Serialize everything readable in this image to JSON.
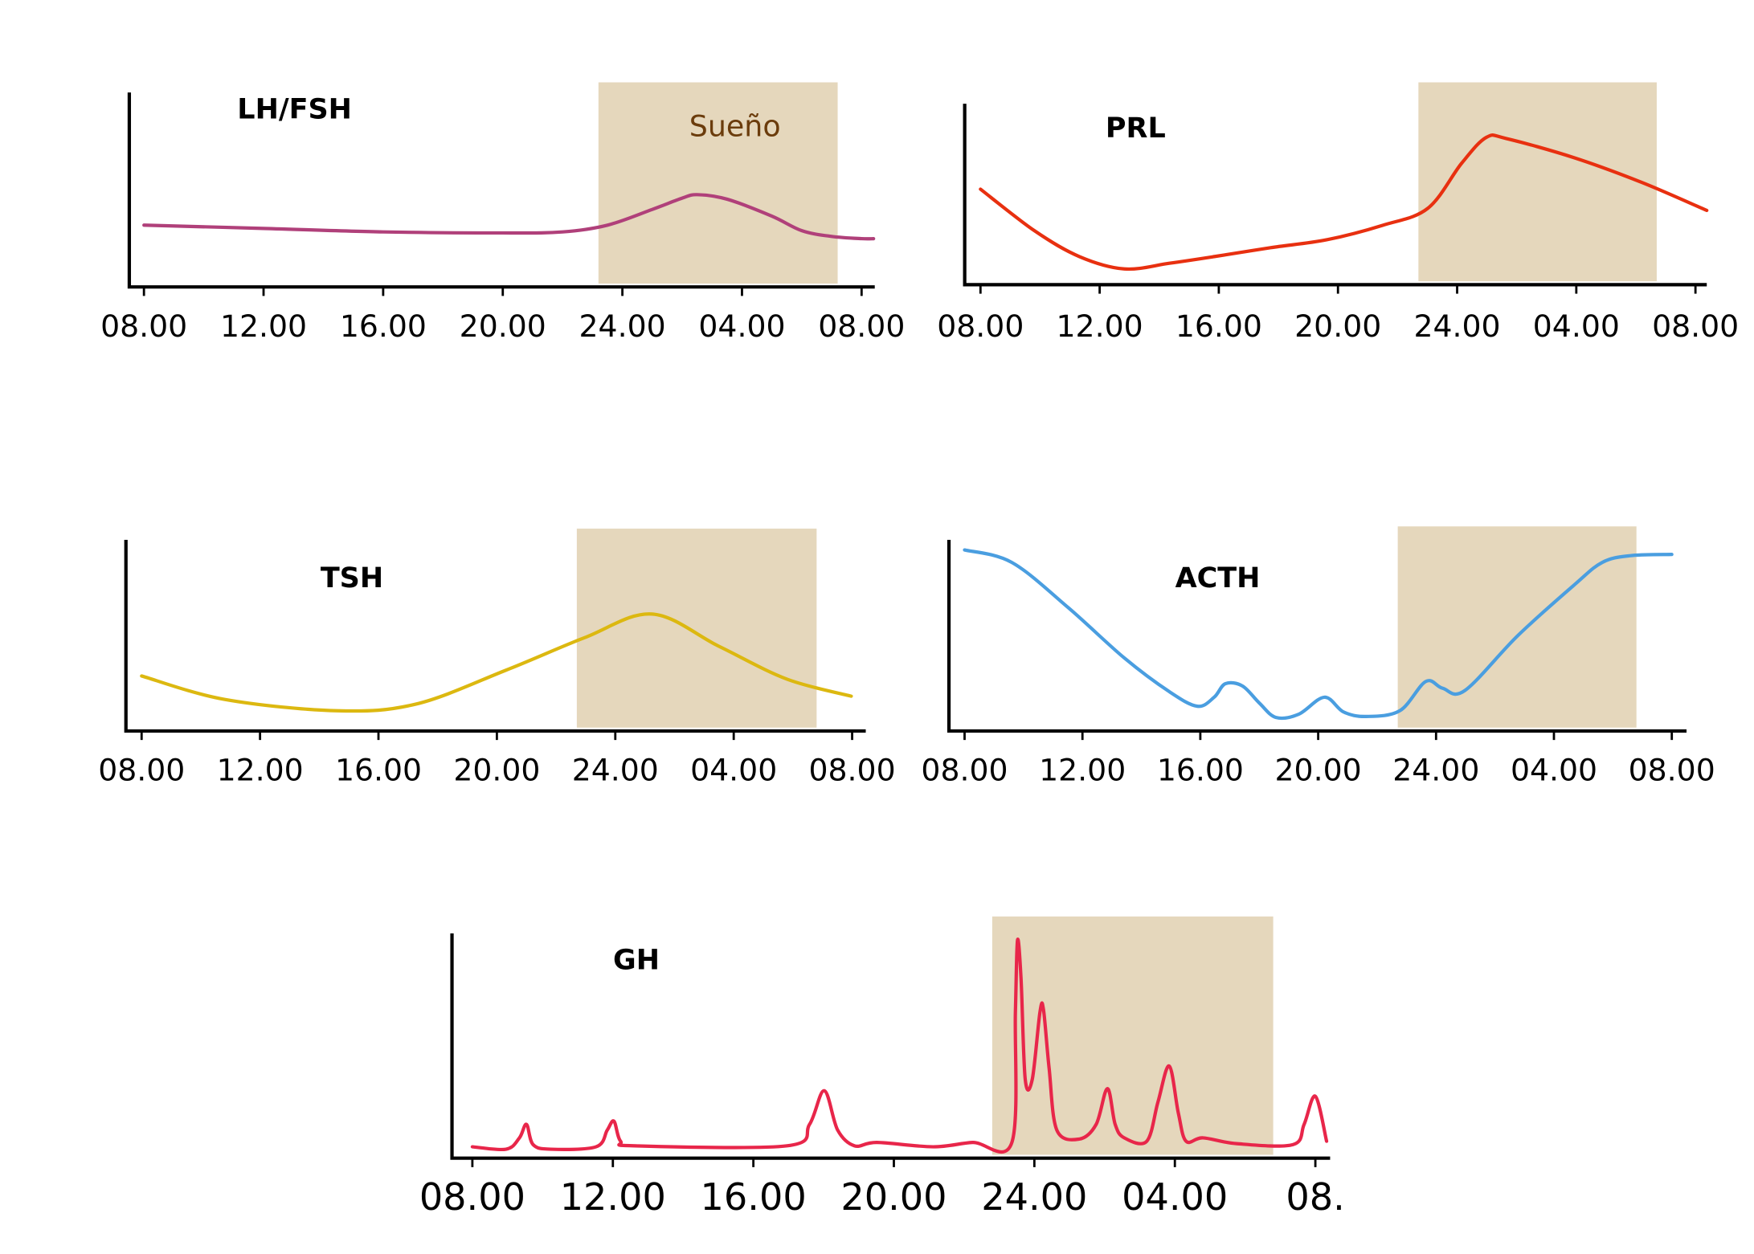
{
  "chart_data": [
    {
      "type": "line",
      "title": "LH/FSH",
      "color": "#b0407a",
      "shade_color": "#e5d7bc",
      "shaded_range": [
        15.2,
        23.2
      ],
      "shaded_label": "Sueño",
      "x": [
        0,
        4,
        8,
        12,
        14,
        15.5,
        17,
        18,
        18.5,
        19.5,
        21,
        22,
        23,
        24,
        24.4
      ],
      "values": [
        30.2,
        28.6,
        26.9,
        26.4,
        26.9,
        30.2,
        37.9,
        43.4,
        45.1,
        42.9,
        34.6,
        27.5,
        24.7,
        23.6,
        23.6
      ],
      "xlim": [
        -0.49,
        24.44
      ],
      "ylim": [
        0,
        100
      ],
      "xticks": [
        {
          "value": 0,
          "label": "08.00"
        },
        {
          "value": 4,
          "label": "12.00"
        },
        {
          "value": 8,
          "label": "16.00"
        },
        {
          "value": 12,
          "label": "20.00"
        },
        {
          "value": 16,
          "label": "24.00"
        },
        {
          "value": 20,
          "label": "04.00"
        },
        {
          "value": 24,
          "label": "08.00"
        }
      ]
    },
    {
      "type": "line",
      "title": "PRL",
      "color": "#e83010",
      "shade_color": "#e5d7bc",
      "shaded_range": [
        14.7,
        22.7
      ],
      "x": [
        0,
        1.81,
        3.32,
        4.83,
        6.34,
        7.85,
        9.74,
        11.62,
        13.51,
        15.02,
        16.15,
        16.98,
        17.66,
        19.92,
        22.19,
        24.38
      ],
      "values": [
        47.2,
        26.7,
        13.9,
        7.8,
        10.6,
        13.9,
        18.3,
        22.2,
        29.4,
        37.8,
        60,
        72.8,
        72.2,
        62.8,
        50.6,
        36.7
      ],
      "xlim": [
        -0.53,
        24.38
      ],
      "ylim": [
        0,
        100
      ],
      "xticks": [
        {
          "value": 0,
          "label": "08.00"
        },
        {
          "value": 4,
          "label": "12.00"
        },
        {
          "value": 8,
          "label": "16.00"
        },
        {
          "value": 12,
          "label": "20.00"
        },
        {
          "value": 16,
          "label": "24.00"
        },
        {
          "value": 20,
          "label": "04.00"
        },
        {
          "value": 24,
          "label": "08.00"
        }
      ]
    },
    {
      "type": "line",
      "title": "TSH",
      "color": "#dcb810",
      "shade_color": "#e5d7bc",
      "shaded_range": [
        14.7,
        22.8
      ],
      "x": [
        0,
        2.81,
        6.61,
        9.27,
        12.3,
        14.96,
        17.24,
        19.52,
        21.8,
        23.97
      ],
      "values": [
        27.2,
        15.6,
        10,
        13.3,
        30,
        46.1,
        57.8,
        41.7,
        25.6,
        17.2
      ],
      "xlim": [
        -0.53,
        24.46
      ],
      "ylim": [
        0,
        100
      ],
      "xticks": [
        {
          "value": 0,
          "label": "08.00"
        },
        {
          "value": 4,
          "label": "12.00"
        },
        {
          "value": 8,
          "label": "16.00"
        },
        {
          "value": 12,
          "label": "20.00"
        },
        {
          "value": 16,
          "label": "24.00"
        },
        {
          "value": 20,
          "label": "04.00"
        },
        {
          "value": 24,
          "label": "08.00"
        }
      ]
    },
    {
      "type": "line",
      "title": "ACTH",
      "color": "#4a9ee0",
      "shade_color": "#e5d7bc",
      "shaded_range": [
        14.7,
        22.8
      ],
      "x": [
        0,
        1.6,
        3.51,
        5.42,
        6.95,
        7.9,
        8.47,
        8.85,
        9.43,
        10,
        10.57,
        11.34,
        12.21,
        12.86,
        13.63,
        14.77,
        15.65,
        16.22,
        16.98,
        18.78,
        20.69,
        21.64,
        22.6,
        24
      ],
      "values": [
        88.5,
        82.4,
        60.4,
        35.7,
        19.2,
        12.1,
        16.5,
        23.1,
        22,
        13.7,
        6.6,
        8.2,
        16.5,
        9.3,
        7.1,
        9.9,
        24.2,
        20.9,
        19.8,
        46.7,
        71.4,
        82.4,
        85.7,
        86.3
      ],
      "xlim": [
        -0.53,
        24.5
      ],
      "ylim": [
        0,
        100
      ],
      "xticks": [
        {
          "value": 0,
          "label": "08.00"
        },
        {
          "value": 4,
          "label": "12.00"
        },
        {
          "value": 8,
          "label": "16.00"
        },
        {
          "value": 12,
          "label": "20.00"
        },
        {
          "value": 16,
          "label": "24.00"
        },
        {
          "value": 20,
          "label": "04.00"
        },
        {
          "value": 24,
          "label": "08.00"
        }
      ]
    },
    {
      "type": "line",
      "title": "GH",
      "color": "#e8264a",
      "shade_color": "#e5d7bc",
      "shaded_range": [
        14.8,
        22.8
      ],
      "x": [
        0,
        0.96,
        1.34,
        1.54,
        1.73,
        2.24,
        3.52,
        3.84,
        4.03,
        4.22,
        4.64,
        8.96,
        9.6,
        10.02,
        10.4,
        10.88,
        11.52,
        13.12,
        14.24,
        15.36,
        15.46,
        15.52,
        15.62,
        15.74,
        15.94,
        16.16,
        16.26,
        16.42,
        16.64,
        17.28,
        17.76,
        18.08,
        18.3,
        18.56,
        19.2,
        19.52,
        19.84,
        20.1,
        20.32,
        20.8,
        21.76,
        23.36,
        23.68,
        24,
        24.32
      ],
      "values": [
        4.7,
        3.7,
        8.4,
        14,
        5.6,
        3.7,
        4.7,
        11.6,
        15.3,
        7,
        5.1,
        5.1,
        14,
        27.9,
        11.6,
        5.1,
        6.5,
        4.7,
        6.5,
        6.5,
        60.5,
        90.2,
        74.4,
        32.6,
        32.6,
        60.5,
        61.4,
        37.2,
        11.6,
        7.9,
        14,
        28.8,
        14,
        8.4,
        7,
        23.3,
        38.1,
        18.6,
        7,
        8.4,
        6,
        5.6,
        14,
        25.6,
        7
      ],
      "xlim": [
        -0.58,
        24.42
      ],
      "ylim": [
        0,
        100
      ],
      "xticks": [
        {
          "value": 0,
          "label": "08.00"
        },
        {
          "value": 4,
          "label": "12.00"
        },
        {
          "value": 8,
          "label": "16.00"
        },
        {
          "value": 12,
          "label": "20.00"
        },
        {
          "value": 16,
          "label": "24.00"
        },
        {
          "value": 20,
          "label": "04.00"
        },
        {
          "value": 24,
          "label": "08."
        }
      ]
    }
  ]
}
